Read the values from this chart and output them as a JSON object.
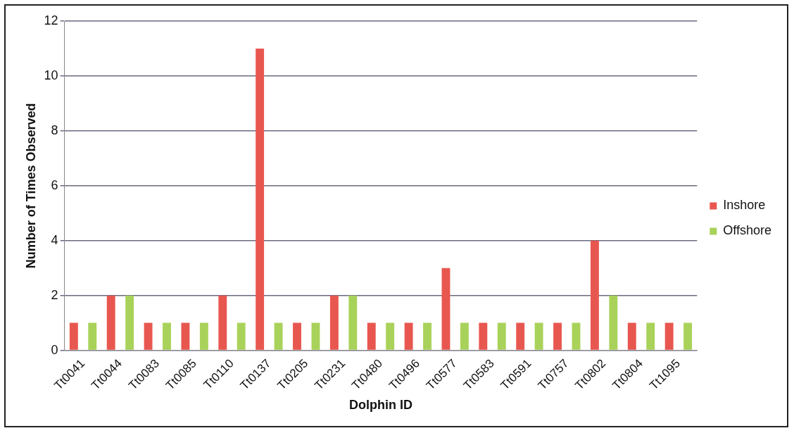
{
  "chart_data": {
    "type": "bar",
    "xlabel": "Dolphin ID",
    "ylabel": "Number of Times Observed",
    "categories": [
      "Tt0041",
      "Tt0044",
      "Tt0083",
      "Tt0085",
      "Tt0110",
      "Tt0137",
      "Tt0205",
      "Tt0231",
      "Tt0480",
      "Tt0496",
      "Tt0577",
      "Tt0583",
      "Tt0591",
      "Tt0757",
      "Tt0802",
      "Tt0804",
      "Tt1095"
    ],
    "series": [
      {
        "name": "Inshore",
        "color": "#e8574f",
        "values": [
          1,
          2,
          1,
          1,
          2,
          11,
          1,
          2,
          1,
          1,
          3,
          1,
          1,
          1,
          4,
          1,
          1
        ]
      },
      {
        "name": "Offshore",
        "color": "#a9d25a",
        "values": [
          1,
          2,
          1,
          1,
          1,
          1,
          1,
          2,
          1,
          1,
          1,
          1,
          1,
          1,
          2,
          1,
          1
        ]
      }
    ],
    "ylim": [
      0,
      12
    ],
    "yticks": [
      0,
      2,
      4,
      6,
      8,
      10,
      12
    ],
    "grid": "y",
    "legend": "right"
  }
}
